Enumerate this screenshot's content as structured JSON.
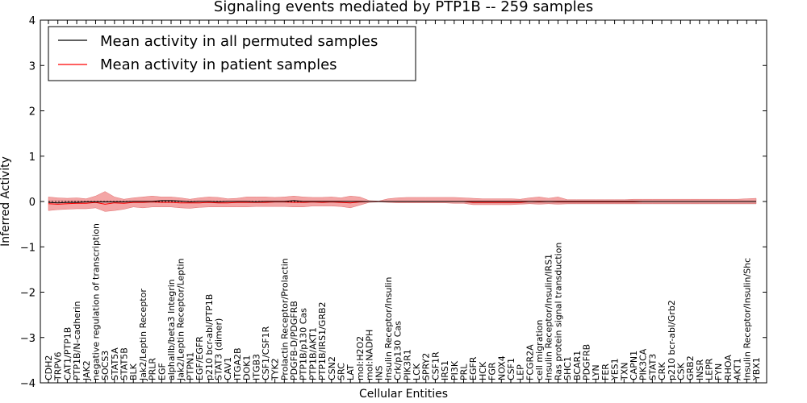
{
  "chart_data": {
    "type": "line",
    "title": "Signaling events mediated by PTP1B -- 259 samples",
    "xlabel": "Cellular Entities",
    "ylabel": "Inferred Activity",
    "ylim": [
      -4,
      4
    ],
    "yticks": [
      -4,
      -3,
      -2,
      -1,
      0,
      1,
      2,
      3,
      4
    ],
    "grid": false,
    "legend_position": "top-left",
    "colors": {
      "permuted": "#000000",
      "patient": "#ff0000",
      "patient_band": "#f08080",
      "permuted_band": "#c8c8c8"
    },
    "categories": [
      "CDH2",
      "TRPV6",
      "CAT1/PTP1B",
      "PTP1B/N-cadherin",
      "JAK2",
      "negative regulation of transcription",
      "SOCS3",
      "STAT5A",
      "STAT5B",
      "BLK",
      "Jak2/Leptin Receptor",
      "PRLR",
      "EGF",
      "alphaIIb/beta3 Integrin",
      "Jak2/Leptin Receptor/Leptin",
      "PTPN1",
      "EGF/EGFR",
      "p210 bcr-abl/PTP1B",
      "STAT3 (dimer)",
      "CAV1",
      "ITGA2B",
      "DOK1",
      "ITGB3",
      "CSF1/CSF1R",
      "TYK2",
      "Prolactin Receptor/Prolactin",
      "PDGFB-D/PDGFRB",
      "PTP1B/p130 Cas",
      "PTP1B/AKT1",
      "PTP1B/IRS1/GRB2",
      "CSN2",
      "SRC",
      "LAT",
      "mol:H2O2",
      "mol:NADPH",
      "INS",
      "Insulin Receptor/Insulin",
      "Crk/p130 Cas",
      "PIK3R1",
      "LCK",
      "SPRY2",
      "CSF1R",
      "IRS1",
      "PI3K",
      "PRL",
      "EGFR",
      "HCK",
      "FGR",
      "NOX4",
      "CSF1",
      "LEP",
      "FCGR2A",
      "cell migration",
      "Insulin Receptor/Insulin/IRS1",
      "Ras protein signal transduction",
      "SHC1",
      "BCAR1",
      "PDGFRB",
      "LYN",
      "FER",
      "YES1",
      "TXN",
      "CAPN1",
      "PIK3CA",
      "STAT3",
      "CRK",
      "p210 bcr-abl/Grb2",
      "CSK",
      "GRB2",
      "INSR",
      "LEPR",
      "FYN",
      "RHOA",
      "AKT1",
      "Insulin Receptor/Insulin/Shc",
      "YBX1"
    ],
    "series": [
      {
        "name": "Mean activity in all permuted samples",
        "values": [
          -0.02,
          -0.03,
          -0.02,
          -0.02,
          -0.01,
          -0.01,
          -0.01,
          -0.01,
          -0.01,
          0.0,
          0.0,
          0.0,
          0.02,
          0.02,
          0.01,
          -0.01,
          0.0,
          0.0,
          -0.01,
          0.0,
          0.0,
          0.0,
          -0.01,
          0.0,
          0.0,
          0.0,
          0.02,
          0.0,
          0.0,
          0.0,
          0.0,
          0.0,
          0.0,
          0.0,
          0.0,
          0.0,
          0.0,
          0.0,
          0.0,
          0.0,
          0.0,
          0.0,
          0.0,
          0.0,
          0.0,
          0.0,
          0.0,
          0.0,
          0.0,
          0.0,
          0.0,
          0.0,
          0.0,
          0.0,
          0.0,
          0.0,
          0.0,
          0.0,
          0.0,
          0.0,
          0.0,
          0.0,
          0.0,
          0.0,
          0.0,
          0.0,
          0.0,
          0.0,
          0.0,
          0.0,
          0.0,
          0.0,
          0.0,
          0.0,
          0.0,
          0.0
        ]
      },
      {
        "name": "Mean activity in patient samples",
        "values": [
          -0.05,
          -0.06,
          -0.05,
          -0.04,
          -0.04,
          -0.02,
          -0.06,
          -0.03,
          -0.04,
          -0.02,
          -0.02,
          -0.01,
          -0.02,
          -0.02,
          -0.03,
          -0.03,
          -0.03,
          -0.02,
          -0.03,
          -0.03,
          -0.02,
          -0.02,
          -0.02,
          -0.02,
          -0.01,
          -0.01,
          -0.02,
          -0.02,
          -0.01,
          -0.02,
          -0.01,
          -0.02,
          -0.03,
          -0.01,
          0.0,
          0.0,
          0.0,
          0.0,
          0.0,
          0.0,
          0.0,
          0.0,
          0.0,
          0.0,
          0.0,
          -0.02,
          -0.02,
          -0.02,
          -0.02,
          -0.02,
          -0.02,
          0.0,
          -0.01,
          0.0,
          -0.01,
          -0.01,
          -0.01,
          -0.01,
          -0.01,
          -0.01,
          -0.01,
          -0.01,
          -0.01,
          0.0,
          0.0,
          0.0,
          0.0,
          0.0,
          0.0,
          0.0,
          0.0,
          0.0,
          0.0,
          0.0,
          0.0,
          0.0
        ]
      }
    ],
    "patient_band_upper": [
      0.1,
      0.08,
      0.07,
      0.08,
      0.06,
      0.12,
      0.22,
      0.1,
      0.05,
      0.08,
      0.1,
      0.12,
      0.1,
      0.1,
      0.08,
      0.05,
      0.08,
      0.1,
      0.09,
      0.06,
      0.07,
      0.1,
      0.1,
      0.1,
      0.09,
      0.1,
      0.12,
      0.1,
      0.09,
      0.09,
      0.1,
      0.08,
      0.12,
      0.1,
      0.02,
      0.01,
      0.06,
      0.08,
      0.09,
      0.09,
      0.09,
      0.09,
      0.09,
      0.09,
      0.08,
      0.07,
      0.06,
      0.06,
      0.06,
      0.06,
      0.05,
      0.08,
      0.1,
      0.07,
      0.1,
      0.04,
      0.04,
      0.04,
      0.04,
      0.04,
      0.04,
      0.04,
      0.05,
      0.05,
      0.05,
      0.05,
      0.05,
      0.05,
      0.05,
      0.05,
      0.05,
      0.05,
      0.05,
      0.05,
      0.06,
      0.07
    ],
    "patient_band_lower": [
      -0.2,
      -0.18,
      -0.17,
      -0.16,
      -0.16,
      -0.14,
      -0.22,
      -0.2,
      -0.17,
      -0.12,
      -0.14,
      -0.12,
      -0.12,
      -0.12,
      -0.14,
      -0.15,
      -0.13,
      -0.12,
      -0.12,
      -0.12,
      -0.12,
      -0.12,
      -0.11,
      -0.11,
      -0.11,
      -0.11,
      -0.12,
      -0.12,
      -0.1,
      -0.1,
      -0.1,
      -0.11,
      -0.14,
      -0.08,
      -0.02,
      -0.01,
      -0.02,
      -0.03,
      -0.03,
      -0.03,
      -0.03,
      -0.03,
      -0.03,
      -0.04,
      -0.04,
      -0.07,
      -0.07,
      -0.07,
      -0.07,
      -0.07,
      -0.06,
      -0.05,
      -0.06,
      -0.05,
      -0.06,
      -0.05,
      -0.05,
      -0.05,
      -0.05,
      -0.05,
      -0.05,
      -0.05,
      -0.05,
      -0.05,
      -0.05,
      -0.05,
      -0.05,
      -0.05,
      -0.05,
      -0.05,
      -0.05,
      -0.05,
      -0.05,
      -0.05,
      -0.05,
      -0.05
    ],
    "permuted_band_upper": [
      0.03,
      0.03,
      0.03,
      0.03,
      0.03,
      0.03,
      0.03,
      0.03,
      0.03,
      0.03,
      0.03,
      0.03,
      0.03,
      0.03,
      0.03,
      0.03,
      0.03,
      0.03,
      0.03,
      0.03,
      0.03,
      0.03,
      0.03,
      0.03,
      0.03,
      0.03,
      0.03,
      0.03,
      0.03,
      0.03,
      0.03,
      0.03,
      0.03,
      0.03,
      0.01,
      0.01,
      0.02,
      0.02,
      0.02,
      0.02,
      0.02,
      0.02,
      0.02,
      0.02,
      0.02,
      0.03,
      0.03,
      0.03,
      0.03,
      0.03,
      0.03,
      0.03,
      0.03,
      0.03,
      0.03,
      0.03,
      0.03,
      0.03,
      0.03,
      0.03,
      0.03,
      0.03,
      0.03,
      0.03,
      0.03,
      0.03,
      0.03,
      0.03,
      0.03,
      0.03,
      0.03,
      0.03,
      0.03,
      0.03,
      0.03,
      0.03
    ],
    "permuted_band_lower": [
      -0.03,
      -0.03,
      -0.03,
      -0.03,
      -0.03,
      -0.03,
      -0.03,
      -0.03,
      -0.03,
      -0.03,
      -0.03,
      -0.03,
      -0.03,
      -0.03,
      -0.03,
      -0.03,
      -0.03,
      -0.03,
      -0.03,
      -0.03,
      -0.03,
      -0.03,
      -0.03,
      -0.03,
      -0.03,
      -0.03,
      -0.03,
      -0.03,
      -0.03,
      -0.03,
      -0.03,
      -0.03,
      -0.03,
      -0.03,
      -0.01,
      -0.01,
      -0.02,
      -0.02,
      -0.02,
      -0.02,
      -0.02,
      -0.02,
      -0.02,
      -0.02,
      -0.02,
      -0.05,
      -0.05,
      -0.05,
      -0.05,
      -0.05,
      -0.05,
      -0.05,
      -0.05,
      -0.05,
      -0.06,
      -0.06,
      -0.06,
      -0.06,
      -0.06,
      -0.06,
      -0.06,
      -0.06,
      -0.06,
      -0.06,
      -0.06,
      -0.06,
      -0.06,
      -0.06,
      -0.06,
      -0.06,
      -0.06,
      -0.06,
      -0.06,
      -0.06,
      -0.06,
      -0.06
    ]
  }
}
